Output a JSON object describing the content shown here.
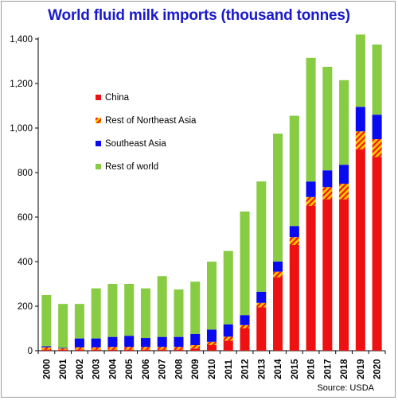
{
  "chart_data": {
    "type": "bar",
    "stacked": true,
    "title": "World fluid milk imports (thousand tonnes)",
    "source": "Source: USDA",
    "ylim": [
      0,
      1400
    ],
    "yticks": [
      "0",
      "200",
      "400",
      "600",
      "800",
      "1,000",
      "1,200",
      "1,400"
    ],
    "ytick_values": [
      0,
      200,
      400,
      600,
      800,
      1000,
      1200,
      1400
    ],
    "grid": false,
    "legend_position": "left-inside",
    "categories": [
      "2000",
      "2001",
      "2002",
      "2003",
      "2004",
      "2005",
      "2006",
      "2007",
      "2008",
      "2009",
      "2010",
      "2011",
      "2012",
      "2013",
      "2014",
      "2015",
      "2016",
      "2017",
      "2018",
      "2019",
      "2020"
    ],
    "series": [
      {
        "name": "China",
        "color": "#ee1111",
        "pattern": "solid",
        "values": [
          5,
          5,
          5,
          5,
          5,
          5,
          5,
          5,
          5,
          10,
          25,
          45,
          100,
          195,
          330,
          475,
          650,
          680,
          680,
          905,
          870
        ]
      },
      {
        "name": "Rest of Northeast Asia",
        "color": "#ffc000",
        "pattern": "hatch",
        "values": [
          10,
          5,
          10,
          10,
          12,
          12,
          12,
          12,
          12,
          15,
          15,
          18,
          15,
          20,
          25,
          35,
          40,
          55,
          70,
          80,
          80
        ]
      },
      {
        "name": "Southeast Asia",
        "color": "#0a0af0",
        "pattern": "solid",
        "values": [
          5,
          3,
          40,
          40,
          45,
          50,
          40,
          45,
          45,
          50,
          55,
          55,
          45,
          50,
          45,
          50,
          70,
          75,
          85,
          110,
          110
        ]
      },
      {
        "name": "Rest of world",
        "color": "#88cc44",
        "pattern": "solid",
        "values": [
          230,
          197,
          155,
          225,
          238,
          233,
          223,
          273,
          213,
          235,
          305,
          330,
          465,
          495,
          575,
          495,
          555,
          465,
          380,
          325,
          315
        ]
      }
    ]
  }
}
